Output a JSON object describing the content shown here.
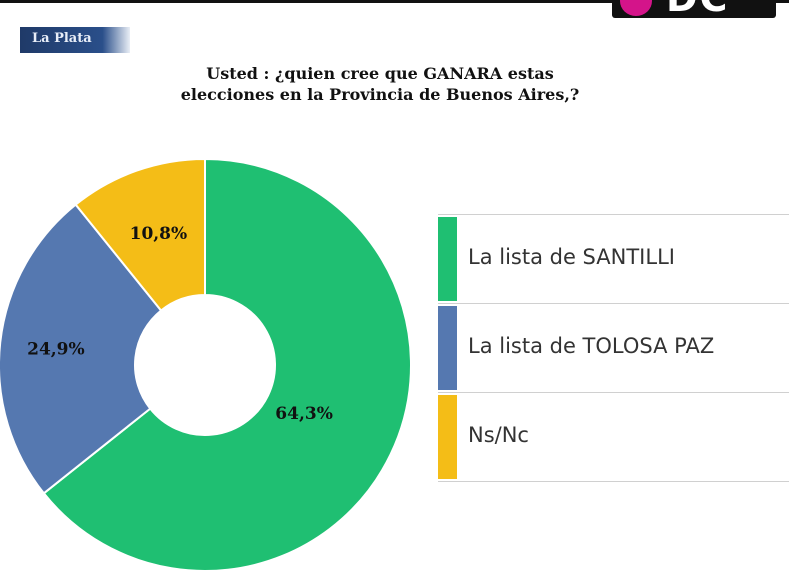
{
  "header": {
    "region": "La Plata",
    "logo_text": "DC"
  },
  "colors": {
    "santilli": "#1fbf72",
    "tolosa_paz": "#5578b0",
    "nsnc": "#f4bd17"
  },
  "chart_data": {
    "type": "pie",
    "title": [
      "Usted : ¿quien cree que GANARA estas",
      "elecciones en la Provincia de Buenos Aires,?"
    ],
    "slices": [
      {
        "label": "La lista de SANTILLI",
        "value": 64.3,
        "value_label": "64,3%",
        "color": "#1fbf72"
      },
      {
        "label": "La lista de TOLOSA PAZ",
        "value": 24.9,
        "value_label": "24,9%",
        "color": "#5578b0"
      },
      {
        "label": "Ns/Nc",
        "value": 10.8,
        "value_label": "10,8%",
        "color": "#f4bd17"
      }
    ],
    "legend": {
      "position": "right"
    }
  }
}
